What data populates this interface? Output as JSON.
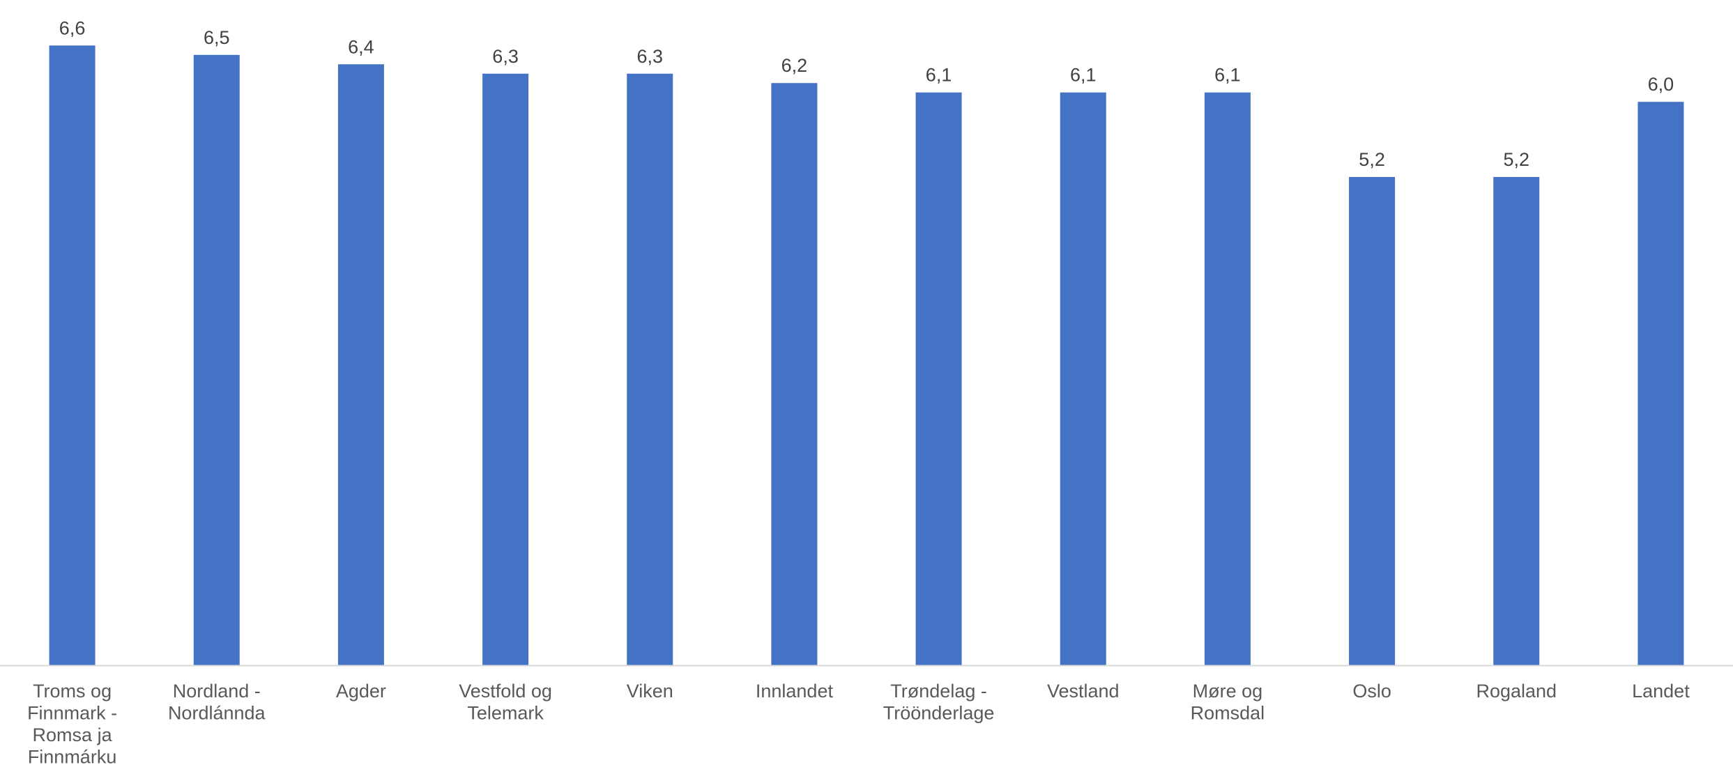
{
  "chart_data": {
    "type": "bar",
    "categories": [
      [
        "Troms og",
        "Finnmark -",
        "Romsa ja",
        "Finnmárku"
      ],
      [
        "Nordland -",
        "Nordlánnda"
      ],
      [
        "Agder"
      ],
      [
        "Vestfold og",
        "Telemark"
      ],
      [
        "Viken"
      ],
      [
        "Innlandet"
      ],
      [
        "Trøndelag -",
        "Tröönderlage"
      ],
      [
        "Vestland"
      ],
      [
        "Møre og",
        "Romsdal"
      ],
      [
        "Oslo"
      ],
      [
        "Rogaland"
      ],
      [
        "Landet"
      ]
    ],
    "values": [
      6.6,
      6.5,
      6.4,
      6.3,
      6.3,
      6.2,
      6.1,
      6.1,
      6.1,
      5.2,
      5.2,
      6.0
    ],
    "value_labels": [
      "6,6",
      "6,5",
      "6,4",
      "6,3",
      "6,3",
      "6,2",
      "6,1",
      "6,1",
      "6,1",
      "5,2",
      "5,2",
      "6,0"
    ],
    "ylim": [
      0,
      7.1
    ],
    "bar_color": "#4472C4",
    "axis_color": "#D9D9D9",
    "grid": false,
    "legend": false
  }
}
